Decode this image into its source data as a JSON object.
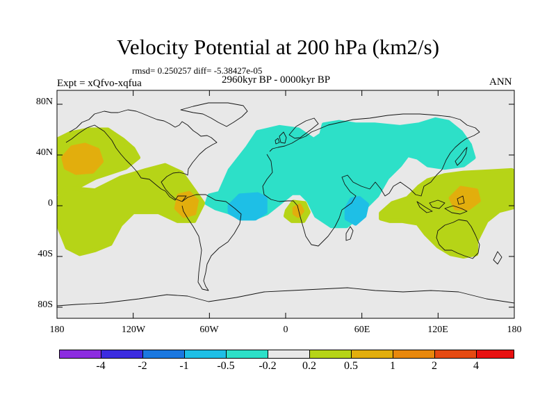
{
  "header": {
    "title": "Velocity Potential at 200 hPa (km2/s)",
    "stats": "rmsd= 0.250257 diff= -5.38427e-05",
    "experiment": "Expt = xQfvo-xqfua",
    "period": "2960kyr BP - 0000kyr BP",
    "season": "ANN"
  },
  "axes": {
    "lat_labels": [
      "80N",
      "40N",
      "0",
      "40S",
      "80S"
    ],
    "lat_values": [
      80,
      40,
      0,
      -40,
      -80
    ],
    "lon_labels": [
      "180",
      "120W",
      "60W",
      "0",
      "60E",
      "120E",
      "180"
    ],
    "lon_values": [
      -180,
      -120,
      -60,
      0,
      60,
      120,
      180
    ]
  },
  "colorbar": {
    "colors": [
      "#8c2ce0",
      "#3c2ce0",
      "#1b78e0",
      "#1ebfe6",
      "#2de0c8",
      "#e8e8e8",
      "#b6d417",
      "#e2ae0d",
      "#e8880c",
      "#e64a12",
      "#e81010"
    ],
    "labels": [
      "-4",
      "-2",
      "-1",
      "-0.5",
      "-0.2",
      "0.2",
      "0.5",
      "1",
      "2",
      "4"
    ]
  },
  "palette": {
    "background": "#e8e8e8",
    "neg_light": "#2de0c8",
    "neg_mid": "#1ebfe6",
    "pos_light": "#b6d417",
    "pos_mid": "#e2ae0d",
    "coast": "#111111"
  },
  "chart_data": {
    "type": "heatmap",
    "title": "Velocity Potential at 200 hPa (km2/s)",
    "units": "km2/s",
    "lon_range": [
      -180,
      180
    ],
    "lat_range": [
      -90,
      90
    ],
    "contour_levels": [
      -4,
      -2,
      -1,
      -0.5,
      -0.2,
      0.2,
      0.5,
      1,
      2,
      4
    ],
    "regions": [
      {
        "name": "north-pacific-positive",
        "level": 0.2,
        "pts": [
          [
            -180,
            52
          ],
          [
            -170,
            57
          ],
          [
            -155,
            60
          ],
          [
            -140,
            60
          ],
          [
            -128,
            52
          ],
          [
            -120,
            45
          ],
          [
            -116,
            38
          ],
          [
            -126,
            30
          ],
          [
            -150,
            22
          ],
          [
            -165,
            14
          ],
          [
            -180,
            10
          ]
        ]
      },
      {
        "name": "north-pacific-core",
        "level": 0.5,
        "pts": [
          [
            -175,
            38
          ],
          [
            -168,
            46
          ],
          [
            -158,
            48
          ],
          [
            -148,
            44
          ],
          [
            -145,
            35
          ],
          [
            -152,
            27
          ],
          [
            -165,
            26
          ],
          [
            -173,
            30
          ]
        ]
      },
      {
        "name": "tropical-east-pacific-positive",
        "level": 0.2,
        "pts": [
          [
            -172,
            14
          ],
          [
            -150,
            12
          ],
          [
            -130,
            22
          ],
          [
            -110,
            28
          ],
          [
            -95,
            32
          ],
          [
            -82,
            26
          ],
          [
            -72,
            12
          ],
          [
            -65,
            2
          ],
          [
            -72,
            -12
          ],
          [
            -85,
            -12
          ],
          [
            -100,
            -5
          ],
          [
            -120,
            -5
          ],
          [
            -130,
            -15
          ],
          [
            -138,
            -30
          ],
          [
            -150,
            -35
          ],
          [
            -162,
            -38
          ],
          [
            -172,
            -33
          ],
          [
            -178,
            -18
          ],
          [
            -180,
            -5
          ],
          [
            -180,
            5
          ]
        ]
      },
      {
        "name": "panama-core",
        "level": 0.5,
        "pts": [
          [
            -84,
            8
          ],
          [
            -76,
            10
          ],
          [
            -70,
            4
          ],
          [
            -72,
            -6
          ],
          [
            -80,
            -8
          ],
          [
            -86,
            -2
          ]
        ]
      },
      {
        "name": "atlantic-eurasia-negative",
        "level": -0.2,
        "pts": [
          [
            -52,
            10
          ],
          [
            -44,
            28
          ],
          [
            -30,
            46
          ],
          [
            -22,
            58
          ],
          [
            -5,
            62
          ],
          [
            10,
            60
          ],
          [
            22,
            52
          ],
          [
            28,
            56
          ],
          [
            30,
            64
          ],
          [
            42,
            66
          ],
          [
            55,
            64
          ],
          [
            70,
            64
          ],
          [
            90,
            62
          ],
          [
            105,
            64
          ],
          [
            118,
            68
          ],
          [
            128,
            66
          ],
          [
            138,
            58
          ],
          [
            145,
            48
          ],
          [
            148,
            38
          ],
          [
            140,
            32
          ],
          [
            125,
            30
          ],
          [
            112,
            32
          ],
          [
            104,
            38
          ],
          [
            96,
            40
          ],
          [
            90,
            32
          ],
          [
            80,
            22
          ],
          [
            72,
            8
          ],
          [
            62,
            -2
          ],
          [
            55,
            -10
          ],
          [
            48,
            -16
          ],
          [
            36,
            -16
          ],
          [
            24,
            -8
          ],
          [
            18,
            4
          ],
          [
            12,
            10
          ],
          [
            5,
            10
          ],
          [
            -5,
            2
          ],
          [
            -15,
            -6
          ],
          [
            -25,
            -10
          ],
          [
            -35,
            -10
          ],
          [
            -45,
            -5
          ],
          [
            -55,
            -2
          ],
          [
            -62,
            2
          ],
          [
            -60,
            8
          ]
        ]
      },
      {
        "name": "atlantic-core",
        "level": -0.5,
        "pts": [
          [
            -44,
            0
          ],
          [
            -36,
            8
          ],
          [
            -22,
            9
          ],
          [
            -16,
            6
          ],
          [
            -16,
            -5
          ],
          [
            -24,
            -10
          ],
          [
            -36,
            -10
          ],
          [
            -44,
            -5
          ]
        ]
      },
      {
        "name": "east-africa-core",
        "level": -0.5,
        "pts": [
          [
            48,
            -2
          ],
          [
            52,
            5
          ],
          [
            58,
            6
          ],
          [
            64,
            1
          ],
          [
            62,
            -8
          ],
          [
            55,
            -14
          ],
          [
            48,
            -10
          ]
        ]
      },
      {
        "name": "southwest-africa-positive",
        "level": 0.2,
        "pts": [
          [
            1,
            -4
          ],
          [
            6,
            3
          ],
          [
            15,
            2
          ],
          [
            18,
            -5
          ],
          [
            14,
            -12
          ],
          [
            5,
            -12
          ],
          [
            0,
            -8
          ]
        ]
      },
      {
        "name": "southwest-africa-core",
        "level": 0.5,
        "pts": [
          [
            7,
            -2
          ],
          [
            11,
            0
          ],
          [
            13,
            -4
          ],
          [
            10,
            -8
          ],
          [
            7,
            -6
          ]
        ]
      },
      {
        "name": "maritime-continent-positive",
        "level": 0.2,
        "pts": [
          [
            75,
            -6
          ],
          [
            84,
            2
          ],
          [
            96,
            6
          ],
          [
            105,
            15
          ],
          [
            112,
            20
          ],
          [
            125,
            24
          ],
          [
            140,
            26
          ],
          [
            160,
            27
          ],
          [
            178,
            28
          ],
          [
            180,
            27
          ],
          [
            180,
            -1
          ],
          [
            168,
            -4
          ],
          [
            158,
            -12
          ],
          [
            150,
            -28
          ],
          [
            150,
            -38
          ],
          [
            140,
            -40
          ],
          [
            130,
            -38
          ],
          [
            120,
            -32
          ],
          [
            110,
            -22
          ],
          [
            104,
            -14
          ],
          [
            92,
            -12
          ],
          [
            82,
            -12
          ],
          [
            75,
            -10
          ]
        ]
      },
      {
        "name": "maritime-continent-core",
        "level": 0.5,
        "pts": [
          [
            130,
            6
          ],
          [
            138,
            14
          ],
          [
            150,
            12
          ],
          [
            152,
            4
          ],
          [
            144,
            -2
          ],
          [
            134,
            -2
          ]
        ]
      }
    ]
  }
}
